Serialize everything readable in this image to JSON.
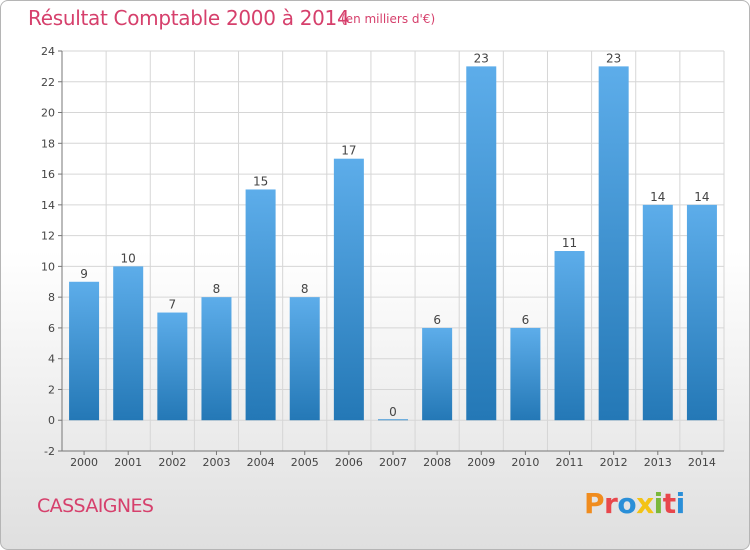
{
  "header": {
    "title": "Résultat Comptable 2000 à 2014",
    "subtitle": "(en milliers d'€)"
  },
  "footer": {
    "commune": "CASSAIGNES",
    "logo_text": "Proxiti",
    "logo_colors": [
      "#f08c1e",
      "#e8474c",
      "#2a8fd8",
      "#f3c316",
      "#7ab83b",
      "#e8474c",
      "#2a8fd8"
    ]
  },
  "colors": {
    "bar_top": "#5dadea",
    "bar_bottom": "#2478b6",
    "grid": "#d6d6d6",
    "axis": "#777777",
    "title": "#d6406c"
  },
  "chart_data": {
    "type": "bar",
    "categories": [
      "2000",
      "2001",
      "2002",
      "2003",
      "2004",
      "2005",
      "2006",
      "2007",
      "2008",
      "2009",
      "2010",
      "2011",
      "2012",
      "2013",
      "2014"
    ],
    "values": [
      9,
      10,
      7,
      8,
      15,
      8,
      17,
      0,
      6,
      23,
      6,
      11,
      23,
      14,
      14
    ],
    "value_labels": [
      "9",
      "10",
      "7",
      "8",
      "15",
      "8",
      "17",
      "0",
      "6",
      "23",
      "6",
      "11",
      "23",
      "14",
      "14"
    ],
    "title": "Résultat Comptable 2000 à 2014",
    "ylim": [
      -2,
      24
    ],
    "yticks": [
      -2,
      0,
      2,
      4,
      6,
      8,
      10,
      12,
      14,
      16,
      18,
      20,
      22,
      24
    ],
    "grid": true,
    "legend": "none"
  }
}
